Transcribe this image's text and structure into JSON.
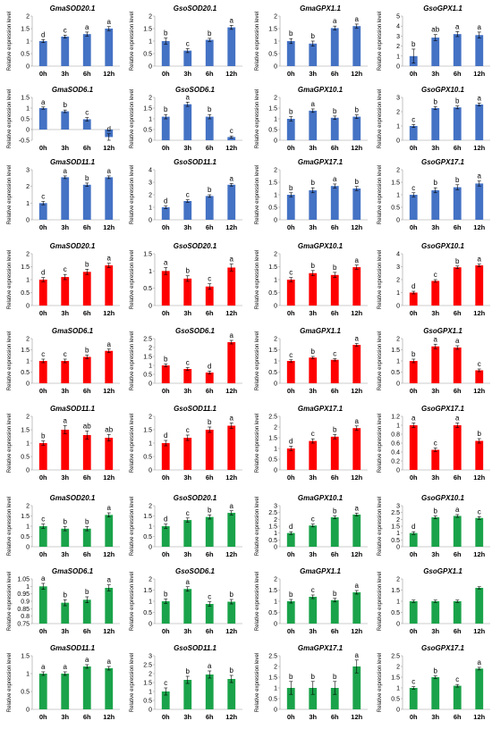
{
  "chart_data": {
    "type": "bar",
    "x_categories": [
      "0h",
      "3h",
      "6h",
      "12h"
    ],
    "ylabel": "Relative expression level",
    "colors": {
      "blue": "#4472c4",
      "red": "#ff0000",
      "green": "#1aa34a"
    },
    "panels": [
      {
        "title": "GmaSOD20.1",
        "color": "blue",
        "ylim": [
          0,
          2
        ],
        "yticks": [
          0,
          0.5,
          1,
          1.5,
          2
        ],
        "values": [
          1,
          1.18,
          1.28,
          1.5
        ],
        "errors": [
          0.06,
          0.06,
          0.08,
          0.08
        ],
        "letters": [
          "d",
          "c",
          "a",
          "a"
        ]
      },
      {
        "title": "GsoSOD20.1",
        "color": "blue",
        "ylim": [
          0,
          2
        ],
        "yticks": [
          0,
          0.5,
          1,
          1.5,
          2
        ],
        "values": [
          1,
          0.62,
          1.05,
          1.55
        ],
        "errors": [
          0.12,
          0.08,
          0.06,
          0.08
        ],
        "letters": [
          "b",
          "c",
          "b",
          "a"
        ]
      },
      {
        "title": "GmaGPX1.1",
        "color": "blue",
        "ylim": [
          0,
          2
        ],
        "yticks": [
          0,
          0.5,
          1,
          1.5,
          2
        ],
        "values": [
          1,
          0.9,
          1.52,
          1.6
        ],
        "errors": [
          0.1,
          0.1,
          0.08,
          0.08
        ],
        "letters": [
          "b",
          "b",
          "a",
          "a"
        ]
      },
      {
        "title": "GsoGPX1.1",
        "color": "blue",
        "ylim": [
          0,
          5
        ],
        "yticks": [
          0,
          1,
          2,
          3,
          4,
          5
        ],
        "values": [
          1,
          2.85,
          3.2,
          3.1
        ],
        "errors": [
          0.7,
          0.3,
          0.25,
          0.3
        ],
        "letters": [
          "b",
          "ab",
          "a",
          "a"
        ]
      },
      {
        "title": "GmaSOD6.1",
        "color": "blue",
        "ylim": [
          -0.5,
          1.5
        ],
        "yticks": [
          -0.5,
          0,
          0.5,
          1,
          1.5
        ],
        "values": [
          1,
          0.85,
          0.48,
          -0.35
        ],
        "errors": [
          0.05,
          0.06,
          0.08,
          0.15
        ],
        "letters": [
          "a",
          "b",
          "c",
          "d"
        ]
      },
      {
        "title": "GsoSOD6.1",
        "color": "blue",
        "ylim": [
          0,
          2
        ],
        "yticks": [
          0,
          0.5,
          1,
          1.5,
          2
        ],
        "values": [
          1.1,
          1.68,
          1.1,
          0.15
        ],
        "errors": [
          0.1,
          0.1,
          0.1,
          0.05
        ],
        "letters": [
          "b",
          "a",
          "b",
          "c"
        ]
      },
      {
        "title": "GmaGPX10.1",
        "color": "blue",
        "ylim": [
          0,
          2
        ],
        "yticks": [
          0,
          0.5,
          1,
          1.5,
          2
        ],
        "values": [
          1,
          1.38,
          1.05,
          1.1
        ],
        "errors": [
          0.1,
          0.08,
          0.08,
          0.08
        ],
        "letters": [
          "b",
          "a",
          "b",
          "b"
        ]
      },
      {
        "title": "GsoGPX10.1",
        "color": "blue",
        "ylim": [
          0,
          3
        ],
        "yticks": [
          0,
          1,
          2,
          3
        ],
        "values": [
          1,
          2.25,
          2.3,
          2.5
        ],
        "errors": [
          0.1,
          0.1,
          0.1,
          0.1
        ],
        "letters": [
          "c",
          "b",
          "b",
          "a"
        ]
      },
      {
        "title": "GmaSOD11.1",
        "color": "blue",
        "ylim": [
          0,
          3
        ],
        "yticks": [
          0,
          1,
          2,
          3
        ],
        "values": [
          1,
          2.55,
          2.1,
          2.55
        ],
        "errors": [
          0.1,
          0.08,
          0.1,
          0.08
        ],
        "letters": [
          "c",
          "a",
          "b",
          "a"
        ]
      },
      {
        "title": "GsoSOD11.1",
        "color": "blue",
        "ylim": [
          0,
          4
        ],
        "yticks": [
          0,
          1,
          2,
          3,
          4
        ],
        "values": [
          1,
          1.5,
          1.9,
          2.8
        ],
        "errors": [
          0.1,
          0.1,
          0.1,
          0.1
        ],
        "letters": [
          "d",
          "c",
          "b",
          "a"
        ]
      },
      {
        "title": "GmaGPX17.1",
        "color": "blue",
        "ylim": [
          0,
          2
        ],
        "yticks": [
          0,
          0.5,
          1,
          1.5,
          2
        ],
        "values": [
          1,
          1.18,
          1.35,
          1.25
        ],
        "errors": [
          0.08,
          0.1,
          0.08,
          0.08
        ],
        "letters": [
          "b",
          "b",
          "a",
          "b"
        ]
      },
      {
        "title": "GsoGPX17.1",
        "color": "blue",
        "ylim": [
          0,
          2
        ],
        "yticks": [
          0,
          0.5,
          1,
          1.5,
          2
        ],
        "values": [
          1,
          1.18,
          1.3,
          1.45
        ],
        "errors": [
          0.08,
          0.1,
          0.1,
          0.1
        ],
        "letters": [
          "c",
          "b",
          "b",
          "a"
        ]
      },
      {
        "title": "GmaSOD20.1",
        "color": "red",
        "ylim": [
          0,
          2
        ],
        "yticks": [
          0,
          0.5,
          1,
          1.5,
          2
        ],
        "values": [
          1,
          1.1,
          1.3,
          1.55
        ],
        "errors": [
          0.08,
          0.1,
          0.1,
          0.08
        ],
        "letters": [
          "d",
          "c",
          "b",
          "a"
        ]
      },
      {
        "title": "GsoSOD20.1",
        "color": "red",
        "ylim": [
          0,
          1.5
        ],
        "yticks": [
          0,
          0.5,
          1,
          1.5
        ],
        "values": [
          1,
          0.78,
          0.55,
          1.1
        ],
        "errors": [
          0.1,
          0.08,
          0.08,
          0.1
        ],
        "letters": [
          "a",
          "b",
          "c",
          "a"
        ]
      },
      {
        "title": "GmaGPX10.1",
        "color": "red",
        "ylim": [
          0,
          2
        ],
        "yticks": [
          0,
          0.5,
          1,
          1.5,
          2
        ],
        "values": [
          1,
          1.25,
          1.18,
          1.48
        ],
        "errors": [
          0.08,
          0.1,
          0.1,
          0.08
        ],
        "letters": [
          "c",
          "b",
          "b",
          "a"
        ]
      },
      {
        "title": "GsoGPX10.1",
        "color": "red",
        "ylim": [
          0,
          4
        ],
        "yticks": [
          0,
          1,
          2,
          3,
          4
        ],
        "values": [
          1,
          1.9,
          2.95,
          3.1
        ],
        "errors": [
          0.1,
          0.1,
          0.1,
          0.1
        ],
        "letters": [
          "d",
          "c",
          "b",
          "a"
        ]
      },
      {
        "title": "GmaSOD6.1",
        "color": "red",
        "ylim": [
          0,
          2
        ],
        "yticks": [
          0,
          0.5,
          1,
          1.5,
          2
        ],
        "values": [
          1,
          1,
          1.18,
          1.45
        ],
        "errors": [
          0.08,
          0.08,
          0.08,
          0.08
        ],
        "letters": [
          "c",
          "c",
          "b",
          "a"
        ]
      },
      {
        "title": "GsoSOD6.1",
        "color": "red",
        "ylim": [
          0,
          2.5
        ],
        "yticks": [
          0,
          0.5,
          1,
          1.5,
          2,
          2.5
        ],
        "values": [
          1,
          0.8,
          0.6,
          2.3
        ],
        "errors": [
          0.08,
          0.08,
          0.08,
          0.1
        ],
        "letters": [
          "b",
          "c",
          "d",
          "a"
        ]
      },
      {
        "title": "GmaGPX1.1",
        "color": "red",
        "ylim": [
          0,
          2
        ],
        "yticks": [
          0,
          0.5,
          1,
          1.5,
          2
        ],
        "values": [
          1,
          1.15,
          1.05,
          1.72
        ],
        "errors": [
          0.05,
          0.05,
          0.05,
          0.06
        ],
        "letters": [
          "c",
          "b",
          "c",
          "a"
        ]
      },
      {
        "title": "GsoGPX1.1",
        "color": "red",
        "ylim": [
          0,
          2
        ],
        "yticks": [
          0,
          0.5,
          1,
          1.5,
          2
        ],
        "values": [
          1,
          1.65,
          1.6,
          0.58
        ],
        "errors": [
          0.08,
          0.1,
          0.08,
          0.06
        ],
        "letters": [
          "b",
          "a",
          "a",
          "c"
        ]
      },
      {
        "title": "GmaSOD11.1",
        "color": "red",
        "ylim": [
          0,
          2
        ],
        "yticks": [
          0,
          0.5,
          1,
          1.5,
          2
        ],
        "values": [
          1,
          1.5,
          1.3,
          1.2
        ],
        "errors": [
          0.08,
          0.15,
          0.15,
          0.12
        ],
        "letters": [
          "b",
          "a",
          "ab",
          "ab"
        ]
      },
      {
        "title": "GsoSOD11.1",
        "color": "red",
        "ylim": [
          0,
          2
        ],
        "yticks": [
          0,
          0.5,
          1,
          1.5,
          2
        ],
        "values": [
          1,
          1.2,
          1.5,
          1.65
        ],
        "errors": [
          0.1,
          0.1,
          0.1,
          0.1
        ],
        "letters": [
          "d",
          "c",
          "b",
          "a"
        ]
      },
      {
        "title": "GmaGPX17.1",
        "color": "red",
        "ylim": [
          0,
          2.5
        ],
        "yticks": [
          0,
          0.5,
          1,
          1.5,
          2,
          2.5
        ],
        "values": [
          1,
          1.35,
          1.55,
          1.95
        ],
        "errors": [
          0.1,
          0.1,
          0.1,
          0.1
        ],
        "letters": [
          "d",
          "c",
          "b",
          "a"
        ]
      },
      {
        "title": "GsoGPX17.1",
        "color": "red",
        "ylim": [
          0,
          1.2
        ],
        "yticks": [
          0,
          0.2,
          0.4,
          0.6,
          0.8,
          1,
          1.2
        ],
        "values": [
          1,
          0.45,
          1,
          0.65
        ],
        "errors": [
          0.05,
          0.04,
          0.05,
          0.05
        ],
        "letters": [
          "a",
          "c",
          "a",
          "b"
        ]
      },
      {
        "title": "GmaSOD20.1",
        "color": "green",
        "ylim": [
          0,
          2
        ],
        "yticks": [
          0,
          0.5,
          1,
          1.5,
          2
        ],
        "values": [
          1,
          0.88,
          0.88,
          1.55
        ],
        "errors": [
          0.1,
          0.1,
          0.1,
          0.1
        ],
        "letters": [
          "c",
          "b",
          "b",
          "a"
        ]
      },
      {
        "title": "GsoSOD20.1",
        "color": "green",
        "ylim": [
          0,
          2
        ],
        "yticks": [
          0,
          0.5,
          1,
          1.5,
          2
        ],
        "values": [
          1,
          1.3,
          1.45,
          1.65
        ],
        "errors": [
          0.1,
          0.1,
          0.1,
          0.1
        ],
        "letters": [
          "d",
          "c",
          "b",
          "a"
        ]
      },
      {
        "title": "GmaGPX10.1",
        "color": "green",
        "ylim": [
          0,
          3
        ],
        "yticks": [
          0,
          0.5,
          1,
          1.5,
          2,
          2.5,
          3
        ],
        "values": [
          1,
          1.55,
          2.15,
          2.35
        ],
        "errors": [
          0.1,
          0.1,
          0.1,
          0.1
        ],
        "letters": [
          "d",
          "c",
          "b",
          "a"
        ]
      },
      {
        "title": "GsoGPX10.1",
        "color": "green",
        "ylim": [
          0,
          3
        ],
        "yticks": [
          0,
          0.5,
          1,
          1.5,
          2,
          2.5,
          3
        ],
        "values": [
          1,
          2.15,
          2.25,
          2.1
        ],
        "errors": [
          0.1,
          0.1,
          0.1,
          0.1
        ],
        "letters": [
          "d",
          "b",
          "a",
          "c"
        ]
      },
      {
        "title": "GmaSOD6.1",
        "color": "green",
        "ylim": [
          0.75,
          1.05
        ],
        "yticks": [
          0.75,
          0.8,
          0.85,
          0.9,
          0.95,
          1,
          1.05
        ],
        "values": [
          1,
          0.89,
          0.91,
          0.99
        ],
        "errors": [
          0.02,
          0.02,
          0.02,
          0.02
        ],
        "letters": [
          "a",
          "b",
          "b",
          "a"
        ]
      },
      {
        "title": "GsoSOD6.1",
        "color": "green",
        "ylim": [
          0,
          2
        ],
        "yticks": [
          0,
          0.5,
          1,
          1.5,
          2
        ],
        "values": [
          1,
          1.55,
          0.88,
          0.98
        ],
        "errors": [
          0.1,
          0.1,
          0.1,
          0.1
        ],
        "letters": [
          "b",
          "a",
          "c",
          "b"
        ]
      },
      {
        "title": "GmaGPX1.1",
        "color": "green",
        "ylim": [
          0,
          2
        ],
        "yticks": [
          0,
          0.5,
          1,
          1.5,
          2
        ],
        "values": [
          1,
          1.2,
          1.05,
          1.4
        ],
        "errors": [
          0.08,
          0.08,
          0.08,
          0.08
        ],
        "letters": [
          "b",
          "c",
          "b",
          "a"
        ]
      },
      {
        "title": "GsoGPX1.1",
        "color": "green",
        "ylim": [
          0,
          2
        ],
        "yticks": [
          0,
          0.5,
          1,
          1.5,
          2
        ],
        "values": [
          1,
          1,
          1,
          1.6
        ],
        "errors": [
          0.05,
          0.05,
          0.05,
          0.05
        ],
        "letters": [
          "",
          "",
          "",
          ""
        ]
      },
      {
        "title": "GmaSOD11.1",
        "color": "green",
        "ylim": [
          0,
          1.5
        ],
        "yticks": [
          0,
          0.5,
          1,
          1.5
        ],
        "values": [
          1,
          1,
          1.2,
          1.15
        ],
        "errors": [
          0.05,
          0.05,
          0.05,
          0.05
        ],
        "letters": [
          "a",
          "a",
          "a",
          "a"
        ]
      },
      {
        "title": "GsoSOD11.1",
        "color": "green",
        "ylim": [
          0,
          3
        ],
        "yticks": [
          0,
          0.5,
          1,
          1.5,
          2,
          2.5,
          3
        ],
        "values": [
          1,
          1.65,
          1.95,
          1.7
        ],
        "errors": [
          0.2,
          0.2,
          0.2,
          0.2
        ],
        "letters": [
          "c",
          "b",
          "a",
          "b"
        ]
      },
      {
        "title": "GmaGPX17.1",
        "color": "green",
        "ylim": [
          0,
          2.5
        ],
        "yticks": [
          0,
          0.5,
          1,
          1.5,
          2,
          2.5
        ],
        "values": [
          1,
          1,
          1,
          2
        ],
        "errors": [
          0.3,
          0.3,
          0.3,
          0.3
        ],
        "letters": [
          "b",
          "b",
          "b",
          "a"
        ]
      },
      {
        "title": "GsoGPX17.1",
        "color": "green",
        "ylim": [
          0,
          2.5
        ],
        "yticks": [
          0,
          0.5,
          1,
          1.5,
          2,
          2.5
        ],
        "values": [
          1,
          1.5,
          1.1,
          1.9
        ],
        "errors": [
          0.06,
          0.06,
          0.06,
          0.06
        ],
        "letters": [
          "c",
          "b",
          "c",
          "a"
        ]
      }
    ]
  }
}
